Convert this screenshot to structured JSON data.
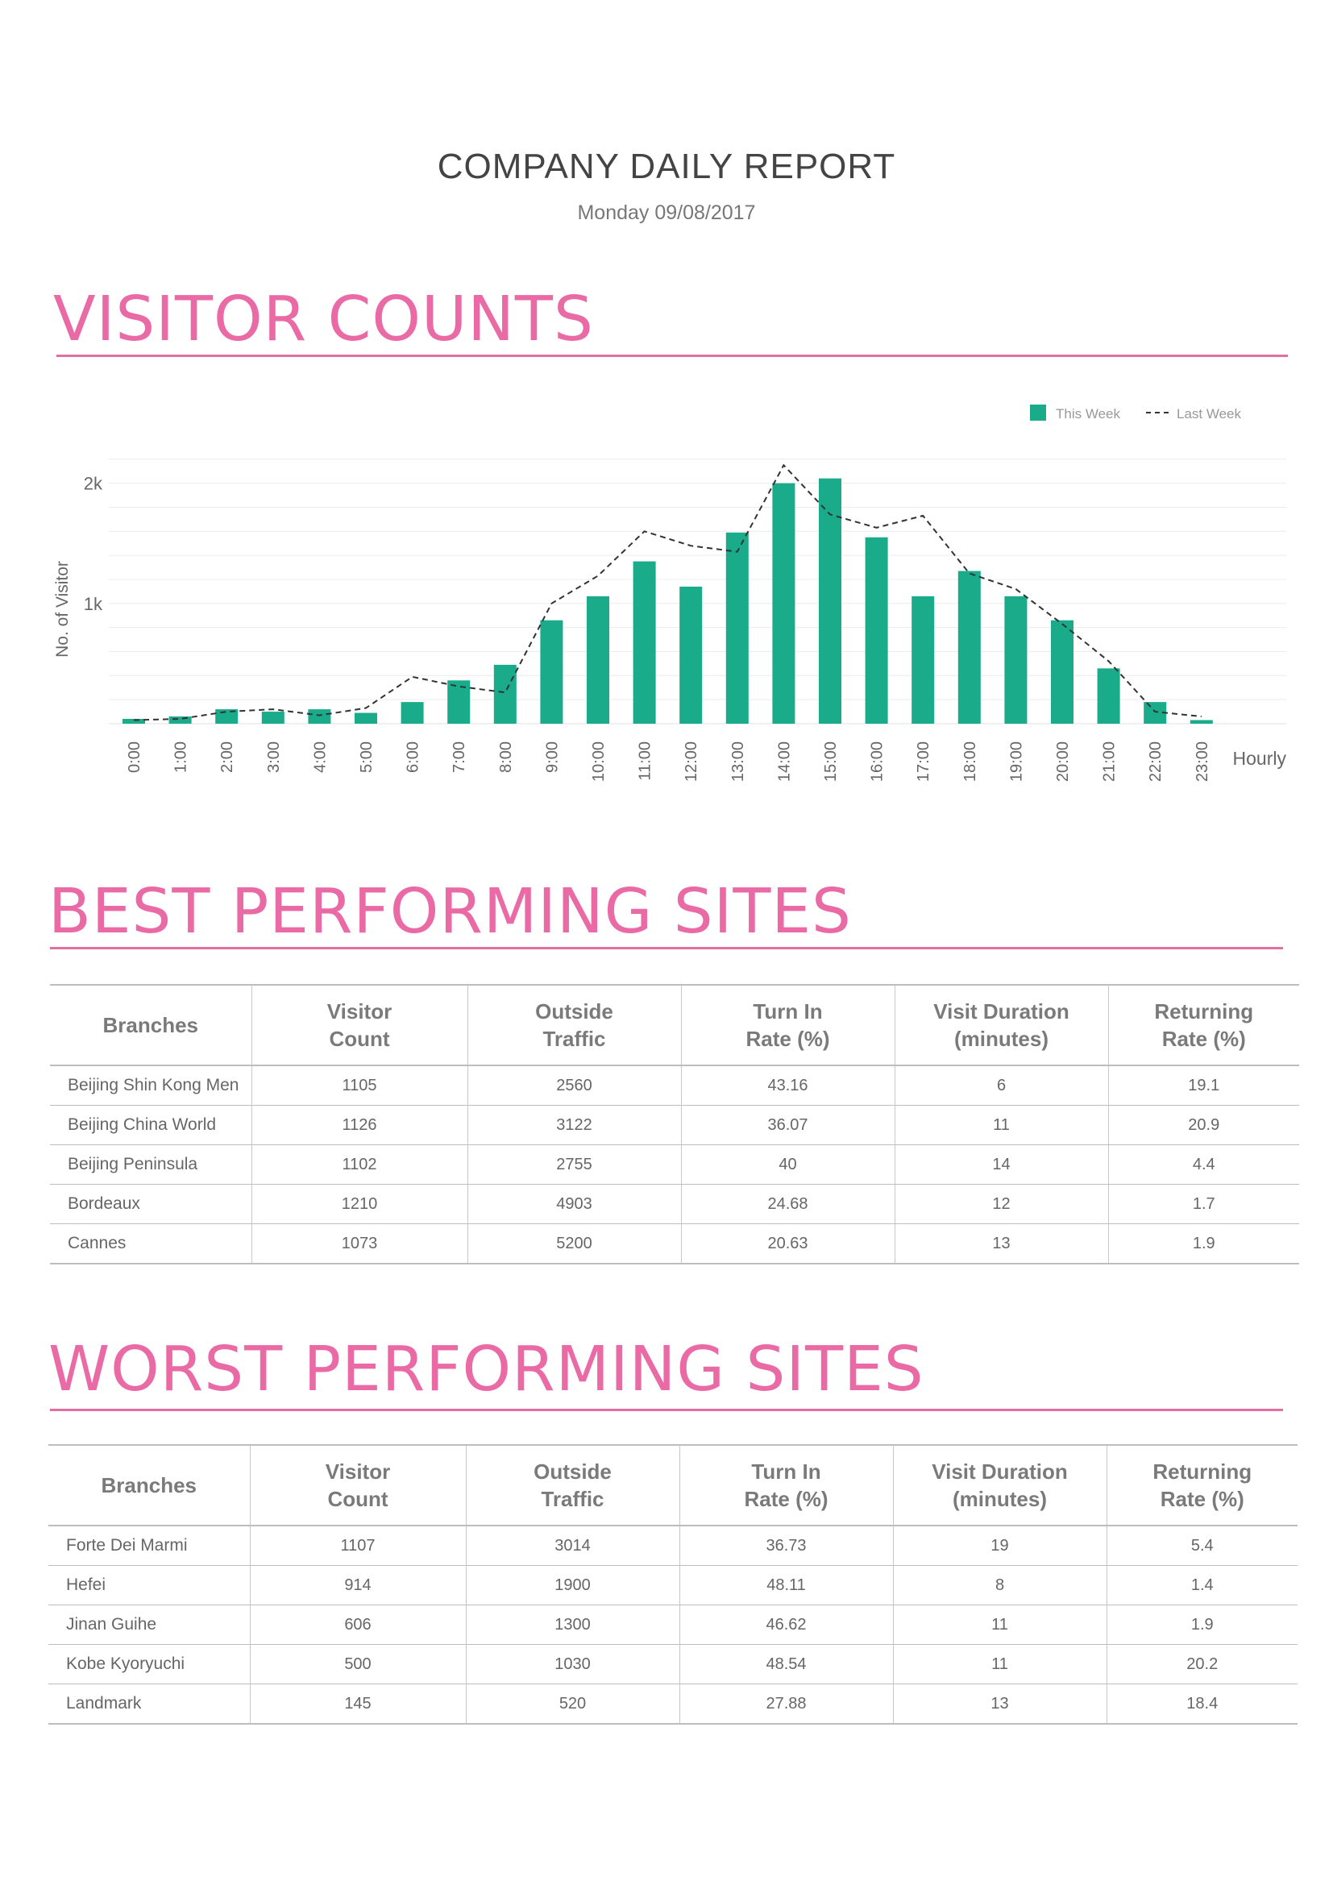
{
  "report": {
    "title": "COMPANY DAILY REPORT",
    "date": "Monday 09/08/2017"
  },
  "sections": {
    "visitor_counts": "VISITOR COUNTS",
    "best": "BEST PERFORMING SITES",
    "worst": "WORST PERFORMING SITES"
  },
  "colors": {
    "accent_pink": "#ea6aa5",
    "bar_green": "#1aab8a",
    "dashed_line": "#333333"
  },
  "chart_data": {
    "type": "bar",
    "ylabel": "No. of Visitor",
    "xlabel": "Hourly",
    "yticks": [
      "1k",
      "2k"
    ],
    "ylim": [
      0,
      2200
    ],
    "grid": true,
    "legend_position": "top-right",
    "categories": [
      "0:00",
      "1:00",
      "2:00",
      "3:00",
      "4:00",
      "5:00",
      "6:00",
      "7:00",
      "8:00",
      "9:00",
      "10:00",
      "11:00",
      "12:00",
      "13:00",
      "14:00",
      "15:00",
      "16:00",
      "17:00",
      "18:00",
      "19:00",
      "20:00",
      "21:00",
      "22:00",
      "23:00"
    ],
    "series": [
      {
        "name": "This Week",
        "style": "bar",
        "values": [
          40,
          60,
          120,
          100,
          120,
          90,
          180,
          360,
          490,
          860,
          1060,
          1350,
          1140,
          1590,
          2000,
          2040,
          1550,
          1060,
          1270,
          1060,
          860,
          460,
          180,
          30
        ]
      },
      {
        "name": "Last Week",
        "style": "dashed-line",
        "values": [
          30,
          40,
          100,
          120,
          70,
          130,
          390,
          310,
          260,
          1000,
          1230,
          1600,
          1480,
          1430,
          2150,
          1740,
          1630,
          1730,
          1250,
          1120,
          830,
          520,
          100,
          60
        ]
      }
    ]
  },
  "best_table": {
    "headers": [
      {
        "l1": "Branches",
        "l2": ""
      },
      {
        "l1": "Visitor",
        "l2": "Count"
      },
      {
        "l1": "Outside",
        "l2": "Traffic"
      },
      {
        "l1": "Turn In",
        "l2": "Rate (%)"
      },
      {
        "l1": "Visit Duration",
        "l2": "(minutes)"
      },
      {
        "l1": "Returning",
        "l2": "Rate (%)"
      }
    ],
    "rows": [
      [
        "Beijing Shin Kong Men",
        "1105",
        "2560",
        "43.16",
        "6",
        "19.1"
      ],
      [
        "Beijing China World",
        "1126",
        "3122",
        "36.07",
        "11",
        "20.9"
      ],
      [
        "Beijing Peninsula",
        "1102",
        "2755",
        "40",
        "14",
        "4.4"
      ],
      [
        "Bordeaux",
        "1210",
        "4903",
        "24.68",
        "12",
        "1.7"
      ],
      [
        "Cannes",
        "1073",
        "5200",
        "20.63",
        "13",
        "1.9"
      ]
    ]
  },
  "worst_table": {
    "headers": [
      {
        "l1": "Branches",
        "l2": ""
      },
      {
        "l1": "Visitor",
        "l2": "Count"
      },
      {
        "l1": "Outside",
        "l2": "Traffic"
      },
      {
        "l1": "Turn In",
        "l2": "Rate (%)"
      },
      {
        "l1": "Visit Duration",
        "l2": "(minutes)"
      },
      {
        "l1": "Returning",
        "l2": "Rate (%)"
      }
    ],
    "rows": [
      [
        "Forte Dei Marmi",
        "1107",
        "3014",
        "36.73",
        "19",
        "5.4"
      ],
      [
        "Hefei",
        "914",
        "1900",
        "48.11",
        "8",
        "1.4"
      ],
      [
        "Jinan Guihe",
        "606",
        "1300",
        "46.62",
        "11",
        "1.9"
      ],
      [
        "Kobe Kyoryuchi",
        "500",
        "1030",
        "48.54",
        "11",
        "20.2"
      ],
      [
        "Landmark",
        "145",
        "520",
        "27.88",
        "13",
        "18.4"
      ]
    ]
  }
}
